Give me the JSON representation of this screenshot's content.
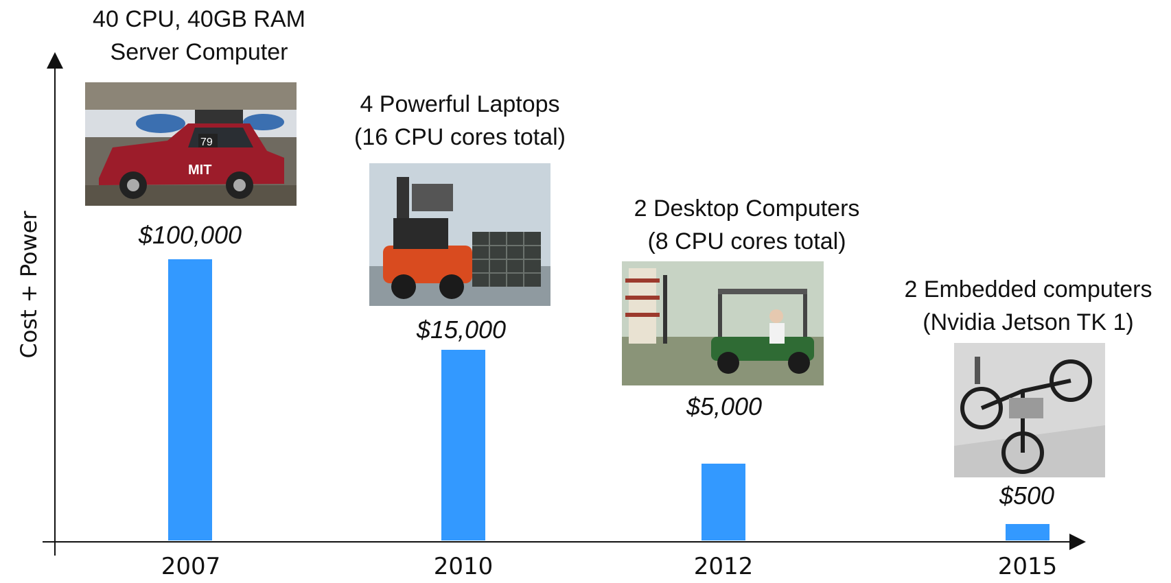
{
  "chart_data": {
    "type": "bar",
    "categories": [
      "2007",
      "2010",
      "2012",
      "2015"
    ],
    "values": [
      100000,
      15000,
      5000,
      500
    ],
    "ylabel": "Cost + Power",
    "xlabel": "",
    "value_labels": [
      "$100,000",
      "$15,000",
      "$5,000",
      "$500"
    ],
    "annotations": [
      {
        "category": "2007",
        "lines": [
          "40 CPU, 40GB RAM",
          "Server Computer"
        ]
      },
      {
        "category": "2010",
        "lines": [
          "4 Powerful Laptops",
          "(16 CPU cores total)"
        ]
      },
      {
        "category": "2012",
        "lines": [
          "2 Desktop Computers",
          "(8 CPU cores total)"
        ]
      },
      {
        "category": "2015",
        "lines": [
          "2 Embedded computers",
          "(Nvidia Jetson TK 1)"
        ]
      }
    ],
    "photos": [
      "red-suv-autonomous-vehicle",
      "robotic-forklift",
      "autonomous-golf-cart",
      "autonomous-tricycle"
    ],
    "bar_color": "#3399FF",
    "grid": false,
    "y_ticks_shown": false
  }
}
